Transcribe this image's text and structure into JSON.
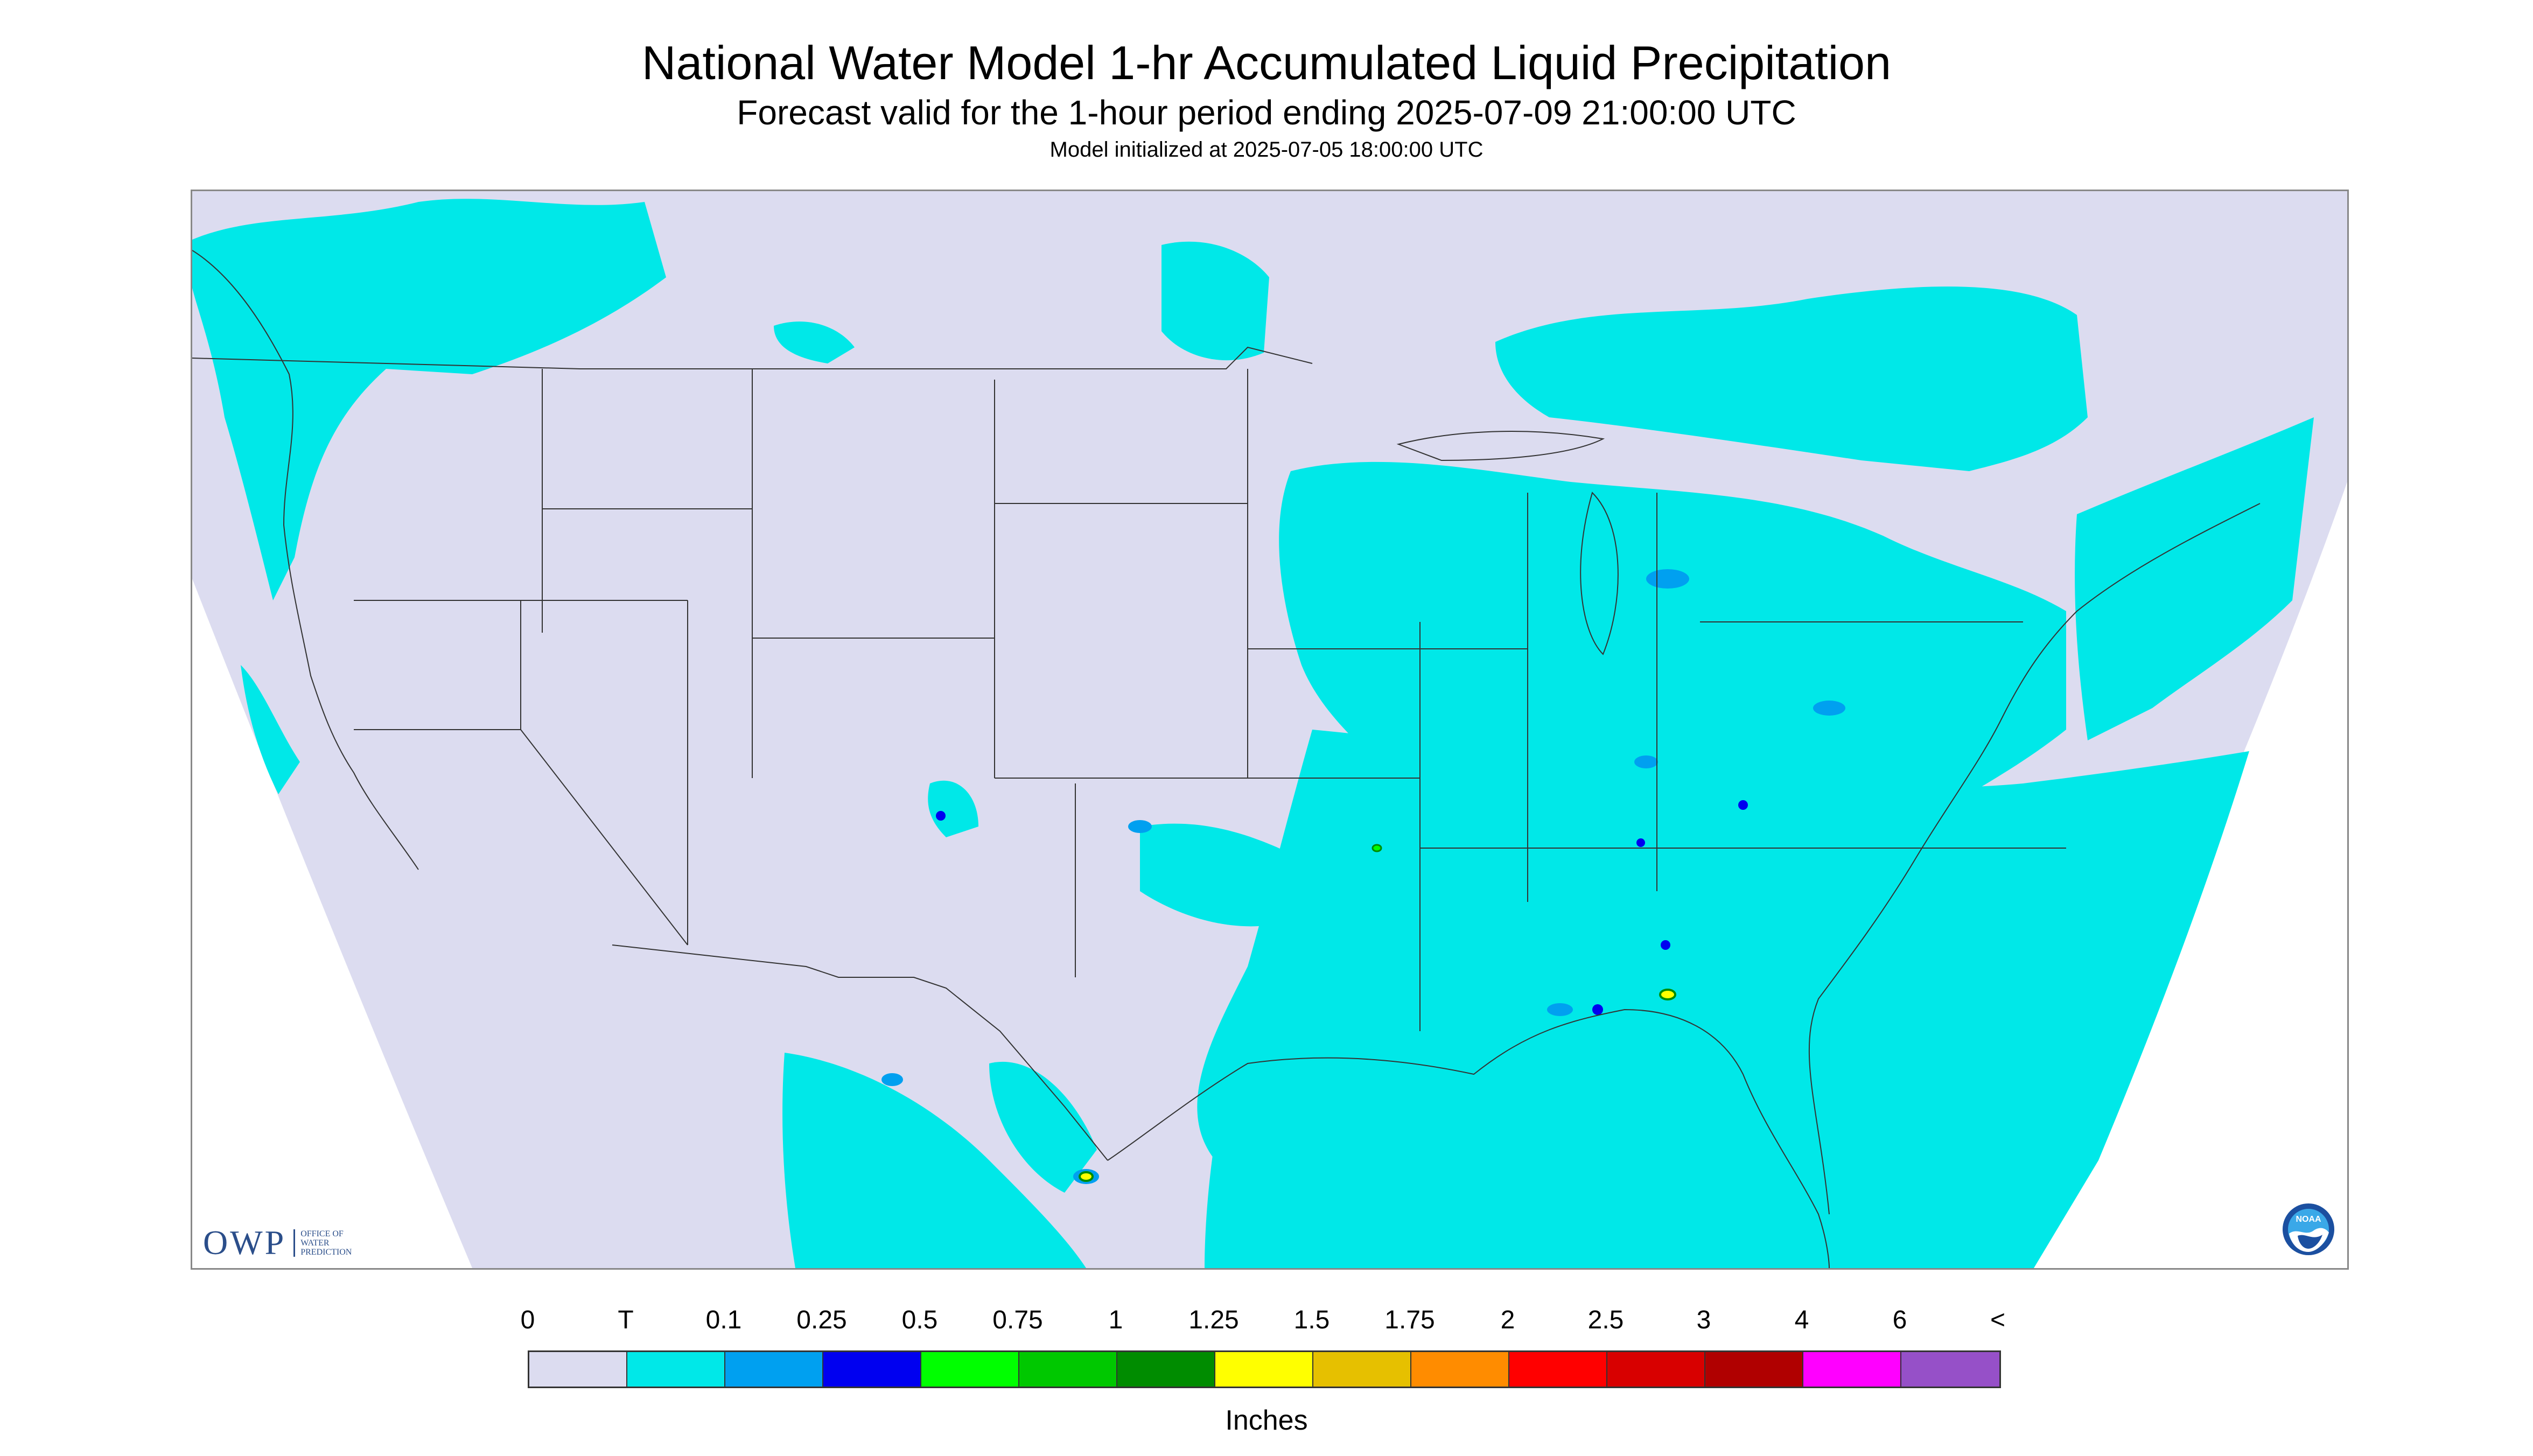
{
  "header": {
    "title": "National Water Model 1-hr Accumulated Liquid Precipitation",
    "subtitle": "Forecast valid for the 1-hour period ending 2025-07-09 21:00:00 UTC",
    "init": "Model initialized at 2025-07-05 18:00:00 UTC"
  },
  "logos": {
    "owp_main": "OWP",
    "owp_sub": [
      "OFFICE OF",
      "WATER",
      "PREDICTION"
    ],
    "noaa": "NOAA"
  },
  "legend": {
    "labels": [
      "0",
      "T",
      "0.1",
      "0.25",
      "0.5",
      "0.75",
      "1",
      "1.25",
      "1.5",
      "1.75",
      "2",
      "2.5",
      "3",
      "4",
      "6",
      "<"
    ],
    "colors": [
      "#dcdcf0",
      "#00e8e8",
      "#00a0f0",
      "#0000f0",
      "#00ff00",
      "#00c800",
      "#008c00",
      "#ffff00",
      "#e6c000",
      "#ff8c00",
      "#ff0000",
      "#d80000",
      "#b00000",
      "#ff00ff",
      "#9650c8"
    ],
    "units": "Inches"
  },
  "map": {
    "background_color": "#dcdcf0",
    "outside_color": "#ffffff",
    "precip_light_color": "#00e8e8",
    "precip_mod_color": "#00a0f0",
    "precip_heavy_color": "#0000f0",
    "border_color": "#333333"
  }
}
